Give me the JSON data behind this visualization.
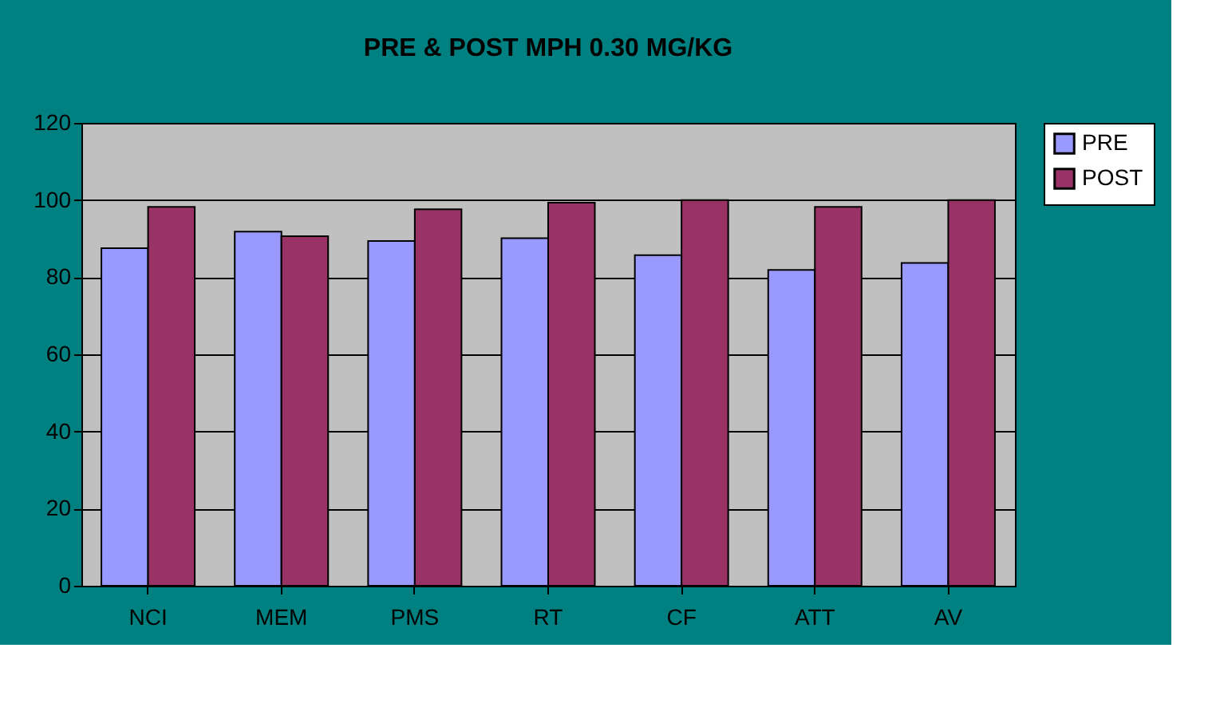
{
  "chart_data": {
    "type": "bar",
    "title": "PRE & POST MPH 0.30 MG/KG",
    "categories": [
      "NCI",
      "MEM",
      "PMS",
      "RT",
      "CF",
      "ATT",
      "AV"
    ],
    "series": [
      {
        "name": "PRE",
        "color": "#9999ff",
        "values": [
          87.5,
          91.8,
          89.4,
          90.1,
          85.7,
          81.9,
          83.7
        ]
      },
      {
        "name": "POST",
        "color": "#993366",
        "values": [
          98.2,
          90.6,
          97.6,
          99.3,
          100,
          98.2,
          100
        ]
      }
    ],
    "ylim": [
      0,
      120
    ],
    "yticks": [
      0,
      20,
      40,
      60,
      80,
      100,
      120
    ],
    "grid": "y",
    "legend": "right"
  }
}
